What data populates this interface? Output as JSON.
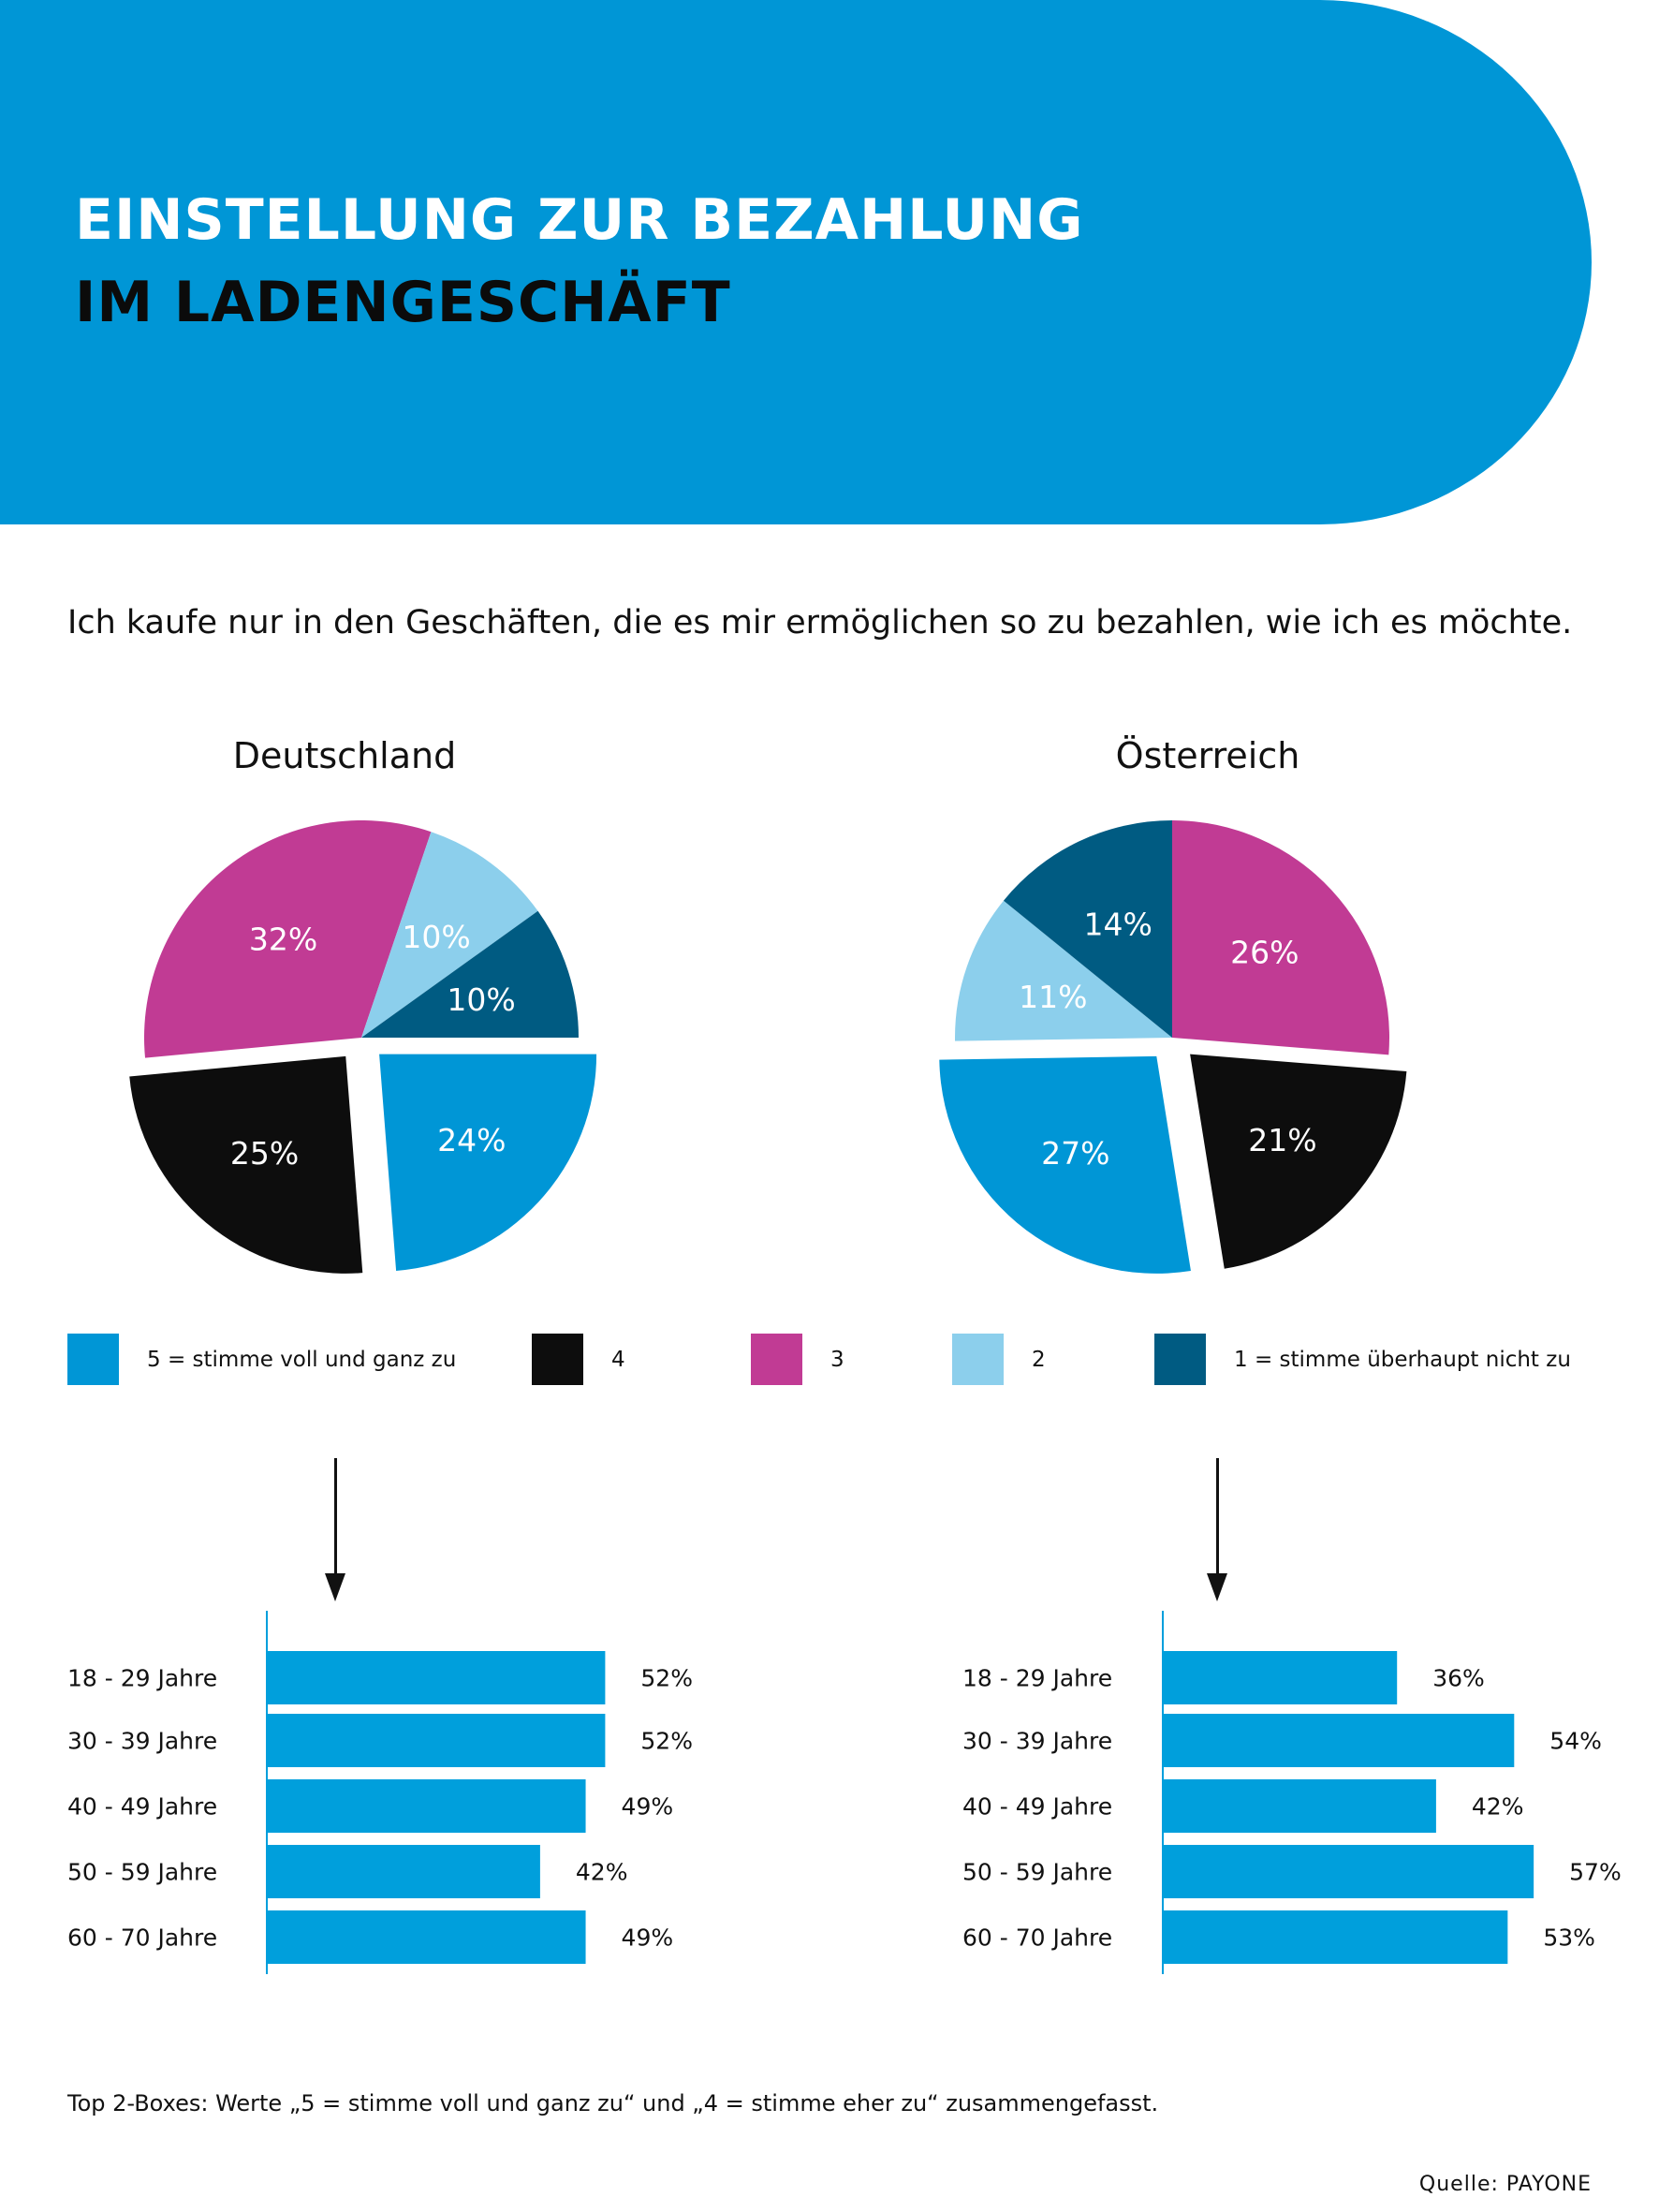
{
  "header": {
    "title_line1": "EINSTELLUNG ZUR BEZAHLUNG",
    "title_line2": "IM LADENGESCHÄFT",
    "background_color": "#0096d6"
  },
  "subtitle": "Ich kaufe nur in den Geschäften, die es mir ermöglichen so zu bezahlen, wie ich es möchte.",
  "colors": {
    "5": "#0096d6",
    "4": "#0d0d0d",
    "3": "#c13b94",
    "2": "#8ccfec",
    "1": "#005b82"
  },
  "legend": [
    {
      "key": "5",
      "label": "5 = stimme voll und ganz zu",
      "color": "#0096d6"
    },
    {
      "key": "4",
      "label": "4",
      "color": "#0d0d0d"
    },
    {
      "key": "3",
      "label": "3",
      "color": "#c13b94"
    },
    {
      "key": "2",
      "label": "2",
      "color": "#8ccfec"
    },
    {
      "key": "1",
      "label": "1 = stimme überhaupt nicht zu",
      "color": "#005b82"
    }
  ],
  "chart_data": [
    {
      "type": "pie",
      "title": "Deutschland",
      "slices": [
        {
          "key": "5",
          "label": "24%",
          "value": 24,
          "exploded": true
        },
        {
          "key": "4",
          "label": "25%",
          "value": 25,
          "exploded": true
        },
        {
          "key": "3",
          "label": "32%",
          "value": 32,
          "exploded": false
        },
        {
          "key": "2",
          "label": "10%",
          "value": 10,
          "exploded": false
        },
        {
          "key": "1",
          "label": "10%",
          "value": 10,
          "exploded": false
        }
      ]
    },
    {
      "type": "pie",
      "title": "Österreich",
      "slices": [
        {
          "key": "3",
          "label": "26%",
          "value": 26,
          "exploded": false
        },
        {
          "key": "4",
          "label": "21%",
          "value": 21,
          "exploded": true
        },
        {
          "key": "5",
          "label": "27%",
          "value": 27,
          "exploded": true
        },
        {
          "key": "2",
          "label": "11%",
          "value": 11,
          "exploded": false
        },
        {
          "key": "1",
          "label": "14%",
          "value": 14,
          "exploded": false
        }
      ]
    },
    {
      "type": "bar",
      "title": "Deutschland – Top 2-Boxes nach Alter",
      "categories": [
        "18 - 29 Jahre",
        "30 - 39 Jahre",
        "40 - 49 Jahre",
        "50 - 59 Jahre",
        "60 - 70 Jahre"
      ],
      "values": [
        52,
        52,
        49,
        42,
        49
      ],
      "value_labels": [
        "52%",
        "52%",
        "49%",
        "42%",
        "49%"
      ],
      "xlim": [
        0,
        60
      ],
      "color": "#009fdc"
    },
    {
      "type": "bar",
      "title": "Österreich – Top 2-Boxes nach Alter",
      "categories": [
        "18 - 29 Jahre",
        "30 - 39 Jahre",
        "40 - 49 Jahre",
        "50 - 59 Jahre",
        "60 - 70 Jahre"
      ],
      "values": [
        36,
        54,
        42,
        57,
        53
      ],
      "value_labels": [
        "36%",
        "54%",
        "42%",
        "57%",
        "53%"
      ],
      "xlim": [
        0,
        60
      ],
      "color": "#009fdc"
    }
  ],
  "footnote": "Top 2-Boxes: Werte „5 = stimme voll und ganz zu“ und „4 = stimme eher zu“ zusammengefasst.",
  "source": "Quelle: PAYONE"
}
